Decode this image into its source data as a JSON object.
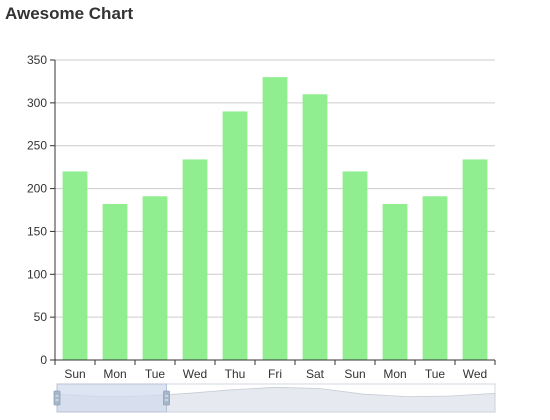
{
  "chart_data": {
    "type": "bar",
    "title": "Awesome Chart",
    "xlabel": "",
    "ylabel": "",
    "categories": [
      "Sun",
      "Mon",
      "Tue",
      "Wed",
      "Thu",
      "Fri",
      "Sat",
      "Sun",
      "Mon",
      "Tue",
      "Wed"
    ],
    "series": [
      {
        "values": [
          220,
          182,
          191,
          234,
          290,
          330,
          310,
          220,
          182,
          191,
          234
        ]
      }
    ],
    "ylim": [
      0,
      350
    ],
    "yticks": [
      0,
      50,
      100,
      150,
      200,
      250,
      300,
      350
    ],
    "grid": true,
    "legend": "none",
    "colors": {
      "bar": "#90ee90",
      "grid": "#cccccc",
      "axis": "#333333",
      "slider_window": "#d2dbee",
      "slider_handle": "#a7b7cc",
      "slider_track": "#e6e9ef"
    }
  },
  "data_zoom": {
    "range_percent": [
      0,
      25
    ]
  }
}
